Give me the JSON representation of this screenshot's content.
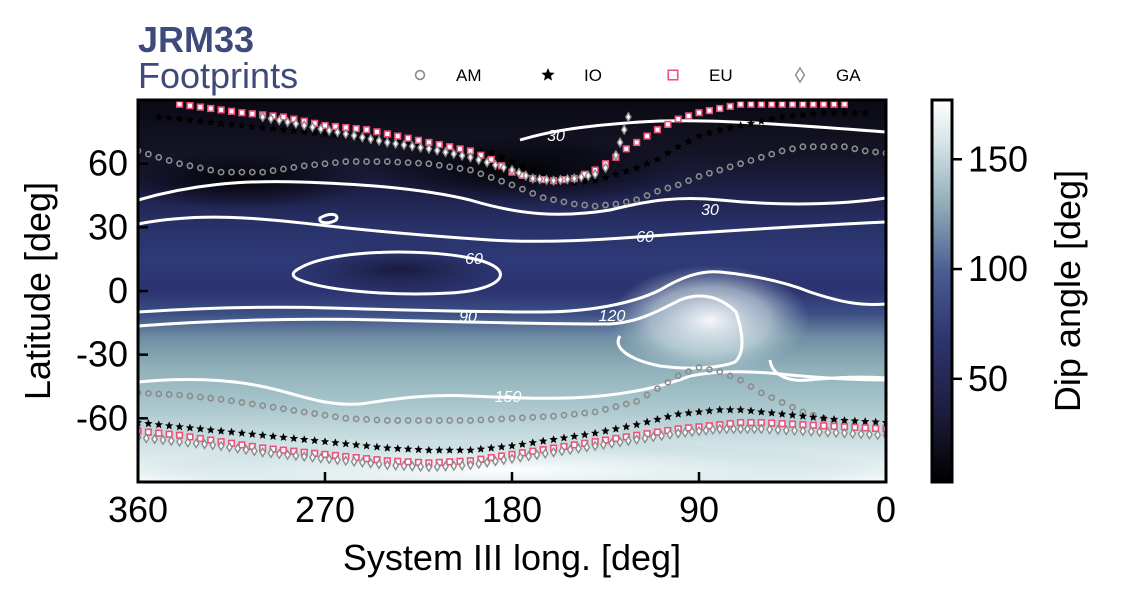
{
  "title": {
    "line1": "JRM33",
    "line2": "Footprints"
  },
  "legend": [
    {
      "key": "am",
      "label": "AM",
      "marker": "circle",
      "color": "#8c8c8c"
    },
    {
      "key": "io",
      "label": "IO",
      "marker": "star",
      "color": "#000000"
    },
    {
      "key": "eu",
      "label": "EU",
      "marker": "square",
      "color": "#f0507a"
    },
    {
      "key": "ga",
      "label": "GA",
      "marker": "diamond",
      "color": "#8c8c8c"
    }
  ],
  "colorbar": {
    "label": "Dip angle [deg]",
    "ticks": [
      50,
      100,
      150
    ],
    "range": [
      3,
      177
    ]
  },
  "chart_data": {
    "type": "heatmap",
    "xlabel": "System III long. [deg]",
    "ylabel": "Latitude [deg]",
    "xlim": [
      360,
      0
    ],
    "ylim": [
      -90,
      90
    ],
    "xticks": [
      360,
      270,
      180,
      90,
      0
    ],
    "yticks": [
      60,
      30,
      0,
      -30,
      -60
    ],
    "xtick_labels": [
      "360",
      "270",
      "180",
      "90",
      "0"
    ],
    "ytick_labels": [
      "60",
      "30",
      "0",
      "-30",
      "-60"
    ],
    "colormap": [
      "#000000",
      "#2b2f66",
      "#3b4a8a",
      "#88a9b4",
      "#dcebee",
      "#ffffff"
    ],
    "contour_levels": [
      30,
      60,
      90,
      120,
      150
    ],
    "contour_labels": [
      "30",
      "30",
      "60",
      "60",
      "90",
      "120",
      "150"
    ],
    "series": [
      {
        "name": "AM",
        "north": {
          "x": [
            360,
            340,
            320,
            300,
            280,
            260,
            240,
            220,
            200,
            180,
            165,
            150,
            140,
            130,
            120,
            110,
            100,
            90,
            80,
            70,
            60,
            50,
            40,
            30,
            20,
            10,
            0
          ],
          "y": [
            66,
            60,
            56,
            56,
            59,
            61,
            61,
            60,
            57,
            50,
            44,
            41,
            40,
            41,
            43,
            47,
            50,
            54,
            57,
            60,
            63,
            66,
            68,
            68,
            68,
            66,
            65
          ]
        },
        "south": {
          "x": [
            360,
            340,
            320,
            300,
            280,
            260,
            240,
            220,
            200,
            180,
            160,
            140,
            120,
            110,
            100,
            90,
            80,
            70,
            60,
            40,
            20,
            0
          ],
          "y": [
            -48,
            -49,
            -51,
            -54,
            -57,
            -60,
            -61,
            -61,
            -61,
            -60,
            -59,
            -57,
            -52,
            -46,
            -40,
            -36,
            -38,
            -42,
            -48,
            -57,
            -63,
            -65
          ]
        }
      },
      {
        "name": "IO",
        "north": {
          "x": [
            350,
            330,
            310,
            290,
            270,
            250,
            230,
            210,
            190,
            170,
            160,
            150,
            140,
            130,
            120,
            110,
            100,
            90,
            80,
            70,
            60,
            50,
            40,
            30,
            20,
            10
          ],
          "y": [
            82,
            80,
            78,
            76,
            74,
            72,
            70,
            68,
            65,
            57,
            53,
            51,
            52,
            55,
            58,
            62,
            68,
            73,
            76,
            78,
            80,
            82,
            83,
            84,
            84,
            84
          ]
        },
        "south": {
          "x": [
            360,
            340,
            320,
            300,
            280,
            260,
            240,
            220,
            200,
            180,
            160,
            140,
            120,
            100,
            90,
            80,
            70,
            60,
            40,
            20,
            0
          ],
          "y": [
            -62,
            -64,
            -66,
            -68,
            -70,
            -72,
            -74,
            -75,
            -75,
            -73,
            -70,
            -67,
            -63,
            -58,
            -57,
            -56,
            -56,
            -57,
            -59,
            -61,
            -62
          ]
        }
      },
      {
        "name": "EU",
        "north": {
          "x": [
            340,
            310,
            290,
            280,
            270,
            260,
            250,
            240,
            230,
            220,
            210,
            200,
            190,
            180,
            170,
            160,
            150,
            145,
            140,
            130,
            125,
            120,
            110,
            100,
            90,
            80,
            70,
            50,
            20
          ],
          "y": [
            88,
            84,
            82,
            80,
            78,
            77,
            76,
            74,
            72,
            70,
            68,
            66,
            62,
            56,
            53,
            52,
            53,
            55,
            57,
            63,
            67,
            70,
            76,
            81,
            84,
            86,
            88,
            88,
            88
          ]
        },
        "south": {
          "x": [
            360,
            340,
            320,
            300,
            280,
            260,
            240,
            220,
            200,
            180,
            160,
            140,
            120,
            100,
            90,
            80,
            70,
            60,
            40,
            20,
            0
          ],
          "y": [
            -66,
            -68,
            -71,
            -74,
            -76,
            -78,
            -80,
            -81,
            -80,
            -77,
            -74,
            -71,
            -68,
            -65,
            -64,
            -63,
            -62,
            -62,
            -63,
            -64,
            -65
          ]
        }
      },
      {
        "name": "GA",
        "north": {
          "x": [
            300,
            280,
            260,
            240,
            220,
            200,
            180,
            170,
            160,
            150,
            140,
            135,
            130,
            128,
            126,
            124
          ],
          "y": [
            82,
            78,
            74,
            70,
            67,
            63,
            57,
            53,
            52,
            53,
            55,
            58,
            64,
            70,
            76,
            82
          ]
        },
        "south": {
          "x": [
            360,
            340,
            320,
            300,
            280,
            260,
            240,
            220,
            200,
            180,
            160,
            140,
            120,
            100,
            90,
            80,
            70,
            60,
            40,
            20,
            0
          ],
          "y": [
            -69,
            -71,
            -73,
            -76,
            -78,
            -80,
            -82,
            -83,
            -82,
            -79,
            -76,
            -73,
            -70,
            -67,
            -66,
            -65,
            -65,
            -65,
            -66,
            -67,
            -68
          ]
        }
      }
    ]
  }
}
